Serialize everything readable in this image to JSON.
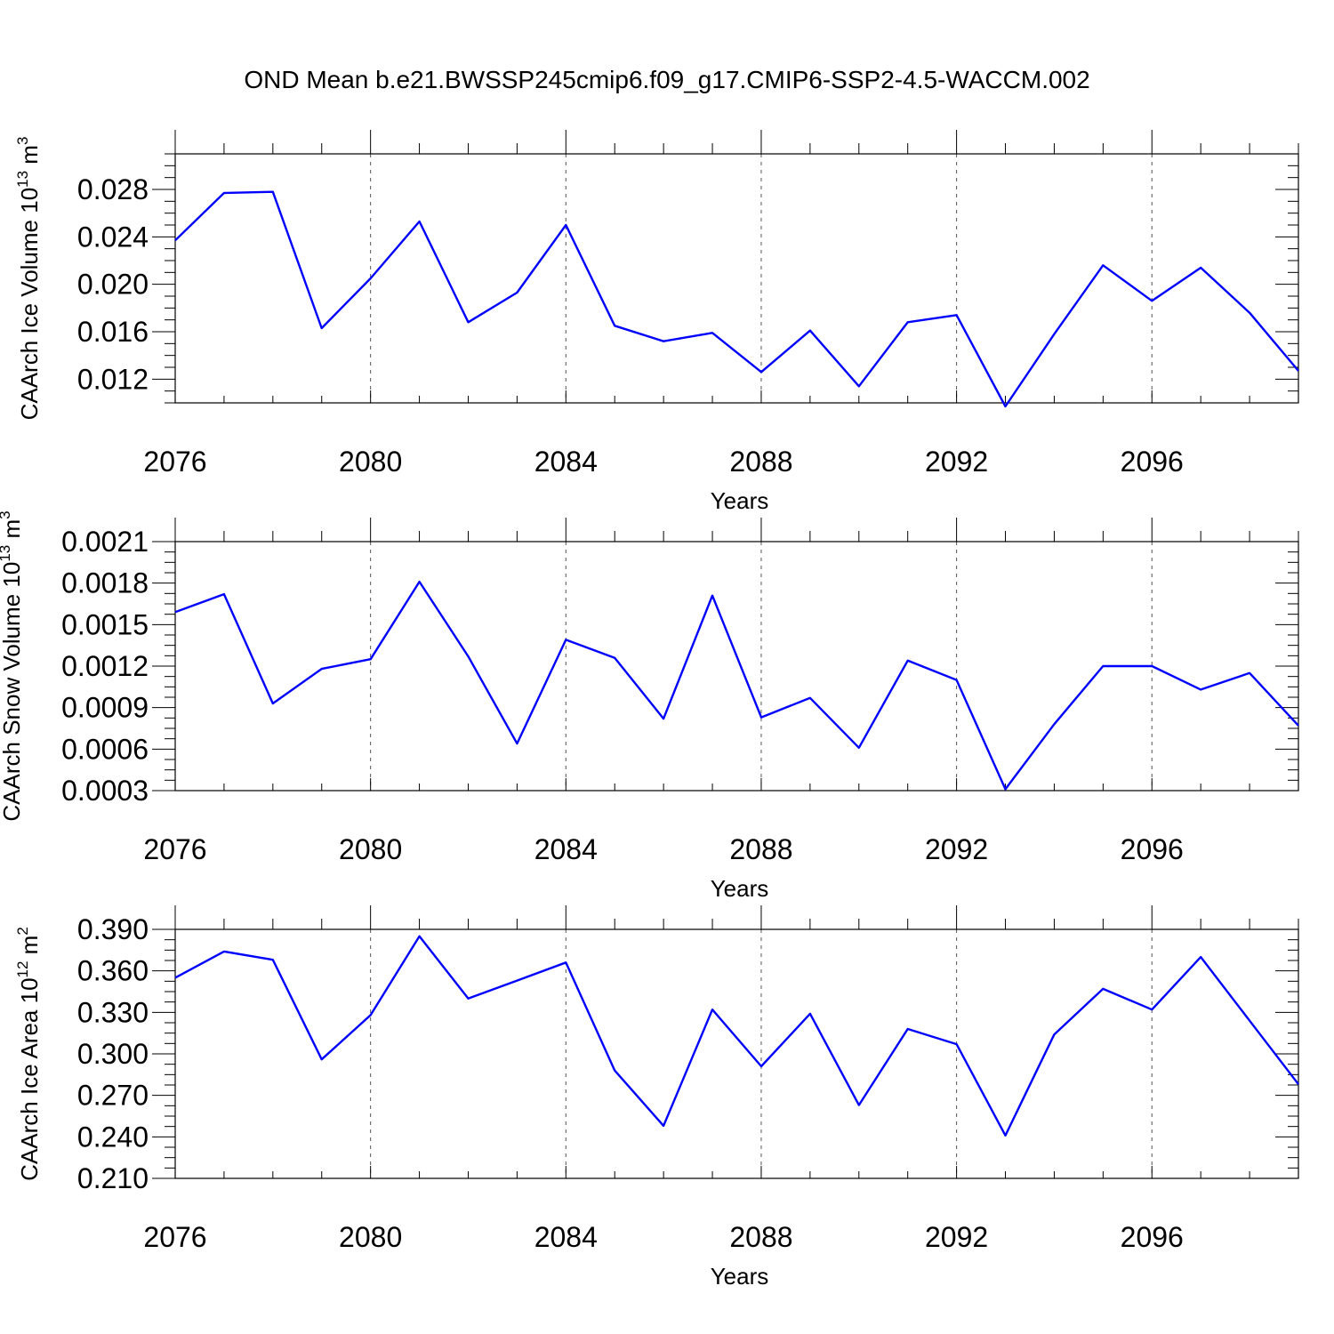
{
  "chart_data": [
    {
      "type": "line",
      "title": "OND Mean b.e21.BWSSP245cmip6.f09_g17.CMIP6-SSP2-4.5-WACCM.002",
      "xlabel": "Years",
      "ylabel": {
        "main": "CAArch Ice Volume 10",
        "exp": "13",
        "unit": " m",
        "unit_exp": "3"
      },
      "xlim": [
        2076,
        2099
      ],
      "ylim": [
        0.01,
        0.031
      ],
      "yticks": [
        0.012,
        0.016,
        0.02,
        0.024,
        0.028
      ],
      "ytick_labels": [
        "0.012",
        "0.016",
        "0.020",
        "0.024",
        "0.028"
      ],
      "xticks": [
        2076,
        2080,
        2084,
        2088,
        2092,
        2096
      ],
      "xtick_labels": [
        "2076",
        "2080",
        "2084",
        "2088",
        "2092",
        "2096"
      ],
      "grid_x": [
        2080,
        2084,
        2088,
        2092,
        2096
      ],
      "color": "#0000ff",
      "series": [
        {
          "name": "CAArch Ice Volume",
          "x": [
            2076,
            2077,
            2078,
            2079,
            2080,
            2081,
            2082,
            2083,
            2084,
            2085,
            2086,
            2087,
            2088,
            2089,
            2090,
            2091,
            2092,
            2093,
            2094,
            2095,
            2096,
            2097,
            2098,
            2099
          ],
          "values": [
            0.0237,
            0.0277,
            0.0278,
            0.0163,
            0.0205,
            0.0253,
            0.0168,
            0.0193,
            0.025,
            0.0165,
            0.0152,
            0.0159,
            0.0126,
            0.0161,
            0.0114,
            0.0168,
            0.0174,
            0.0097,
            0.0158,
            0.0216,
            0.0186,
            0.0214,
            0.0176,
            0.0127
          ]
        }
      ]
    },
    {
      "type": "line",
      "xlabel": "Years",
      "ylabel": {
        "main": "CAArch Snow Volume 10",
        "exp": "13",
        "unit": " m",
        "unit_exp": "3"
      },
      "xlim": [
        2076,
        2099
      ],
      "ylim": [
        0.0003,
        0.0021
      ],
      "yticks": [
        0.0003,
        0.0006,
        0.0009,
        0.0012,
        0.0015,
        0.0018,
        0.0021
      ],
      "ytick_labels": [
        "0.0003",
        "0.0006",
        "0.0009",
        "0.0012",
        "0.0015",
        "0.0018",
        "0.0021"
      ],
      "xticks": [
        2076,
        2080,
        2084,
        2088,
        2092,
        2096
      ],
      "xtick_labels": [
        "2076",
        "2080",
        "2084",
        "2088",
        "2092",
        "2096"
      ],
      "grid_x": [
        2080,
        2084,
        2088,
        2092,
        2096
      ],
      "color": "#0000ff",
      "series": [
        {
          "name": "CAArch Snow Volume",
          "x": [
            2076,
            2077,
            2078,
            2079,
            2080,
            2081,
            2082,
            2083,
            2084,
            2085,
            2086,
            2087,
            2088,
            2089,
            2090,
            2091,
            2092,
            2093,
            2094,
            2095,
            2096,
            2097,
            2098,
            2099
          ],
          "values": [
            0.00159,
            0.00172,
            0.00093,
            0.00118,
            0.00125,
            0.00181,
            0.00127,
            0.00064,
            0.00139,
            0.00126,
            0.00082,
            0.00171,
            0.00083,
            0.00097,
            0.00061,
            0.00124,
            0.0011,
            0.00031,
            0.00078,
            0.0012,
            0.0012,
            0.00103,
            0.00115,
            0.00077
          ]
        }
      ]
    },
    {
      "type": "line",
      "xlabel": "Years",
      "ylabel": {
        "main": "CAArch Ice Area 10",
        "exp": "12",
        "unit": " m",
        "unit_exp": "2"
      },
      "xlim": [
        2076,
        2099
      ],
      "ylim": [
        0.21,
        0.39
      ],
      "yticks": [
        0.21,
        0.24,
        0.27,
        0.3,
        0.33,
        0.36,
        0.39
      ],
      "ytick_labels": [
        "0.210",
        "0.240",
        "0.270",
        "0.300",
        "0.330",
        "0.360",
        "0.390"
      ],
      "xticks": [
        2076,
        2080,
        2084,
        2088,
        2092,
        2096
      ],
      "xtick_labels": [
        "2076",
        "2080",
        "2084",
        "2088",
        "2092",
        "2096"
      ],
      "grid_x": [
        2080,
        2084,
        2088,
        2092,
        2096
      ],
      "color": "#0000ff",
      "series": [
        {
          "name": "CAArch Ice Area",
          "x": [
            2076,
            2077,
            2078,
            2079,
            2080,
            2081,
            2082,
            2083,
            2084,
            2085,
            2086,
            2087,
            2088,
            2089,
            2090,
            2091,
            2092,
            2093,
            2094,
            2095,
            2096,
            2097,
            2098,
            2099
          ],
          "values": [
            0.355,
            0.374,
            0.368,
            0.296,
            0.328,
            0.385,
            0.34,
            0.353,
            0.366,
            0.288,
            0.248,
            0.332,
            0.291,
            0.329,
            0.263,
            0.318,
            0.307,
            0.241,
            0.314,
            0.347,
            0.332,
            0.37,
            0.324,
            0.278
          ]
        }
      ]
    }
  ]
}
